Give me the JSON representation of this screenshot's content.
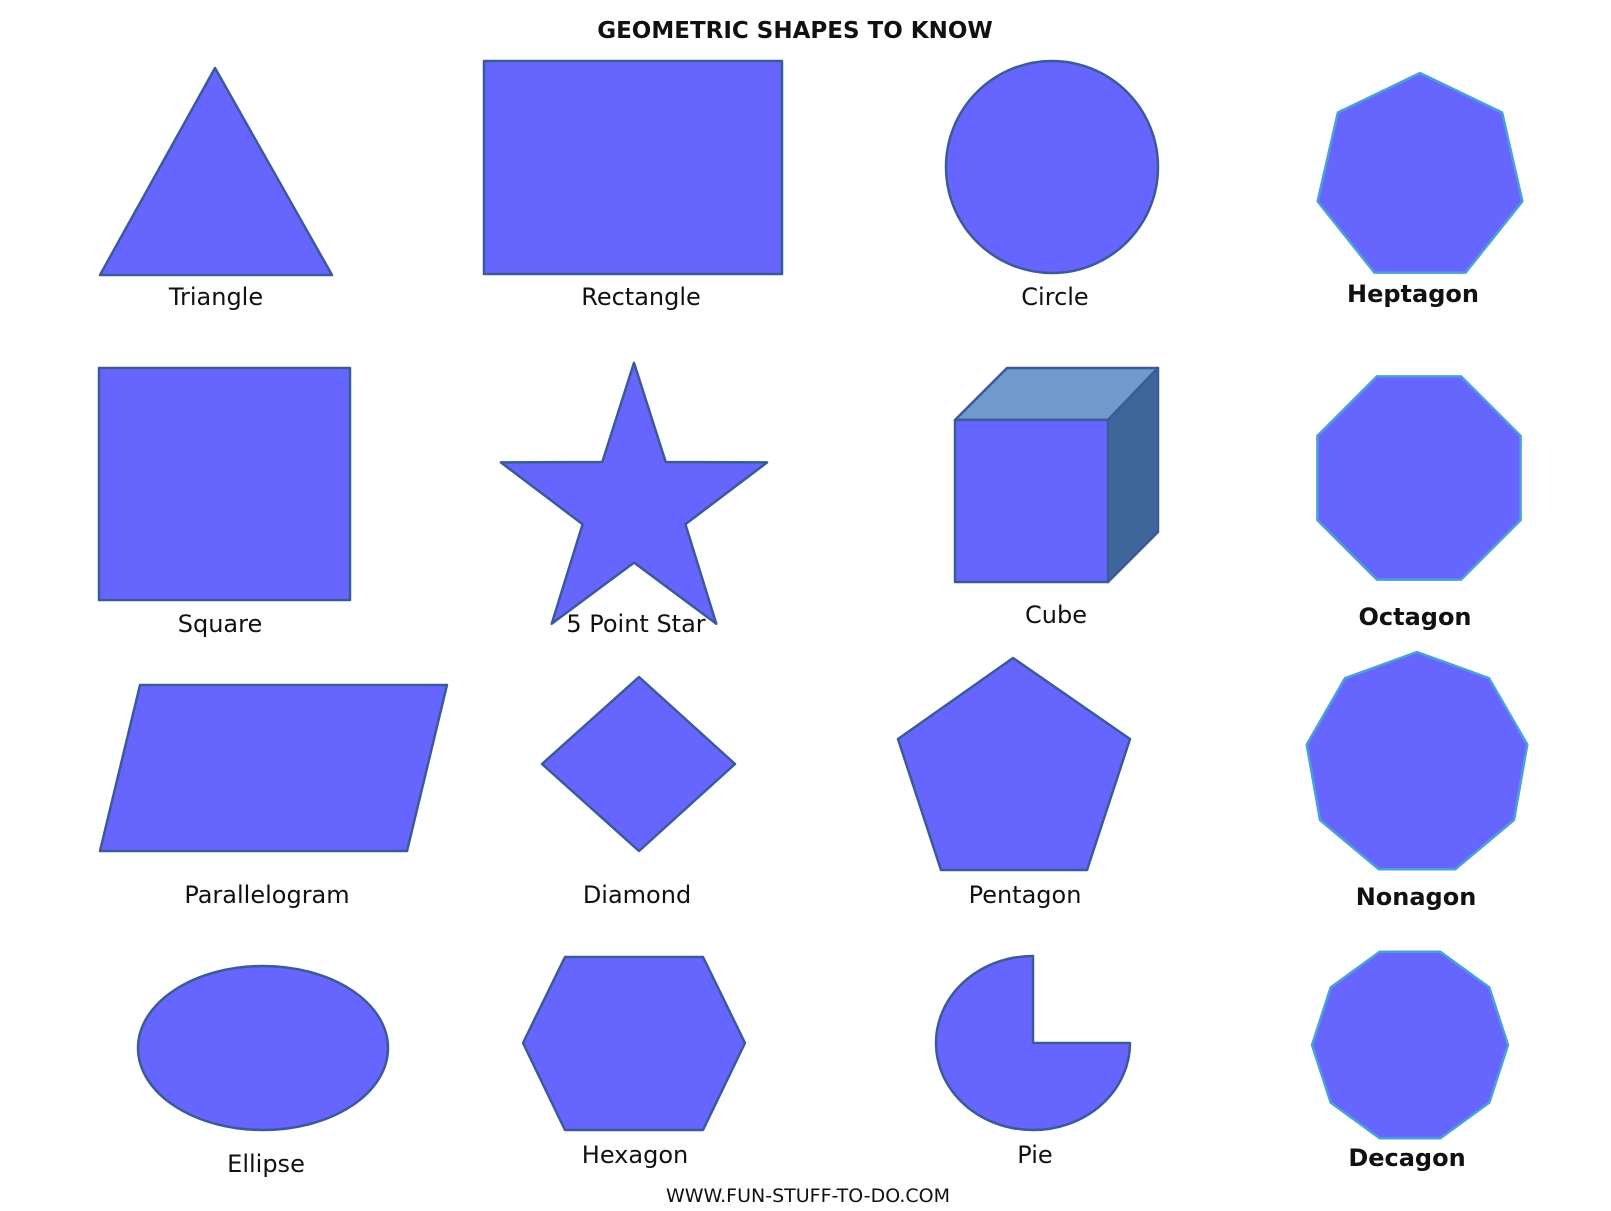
{
  "title": "GEOMETRIC SHAPES TO KNOW",
  "footer": "WWW.FUN-STUFF-TO-DO.COM",
  "colors": {
    "fill": "#6666ff",
    "outline": "#3a5a9a",
    "outline_bright": "#4aa0d8",
    "cube_top": "#7099cc",
    "cube_side": "#3f6699"
  },
  "shapes": {
    "triangle": "Triangle",
    "rectangle": "Rectangle",
    "circle": "Circle",
    "heptagon": "Heptagon",
    "square": "Square",
    "star": "5 Point Star",
    "cube": "Cube",
    "octagon": "Octagon",
    "parallelogram": "Parallelogram",
    "diamond": "Diamond",
    "pentagon": "Pentagon",
    "nonagon": "Nonagon",
    "ellipse": "Ellipse",
    "hexagon": "Hexagon",
    "pie": "Pie",
    "decagon": "Decagon"
  }
}
